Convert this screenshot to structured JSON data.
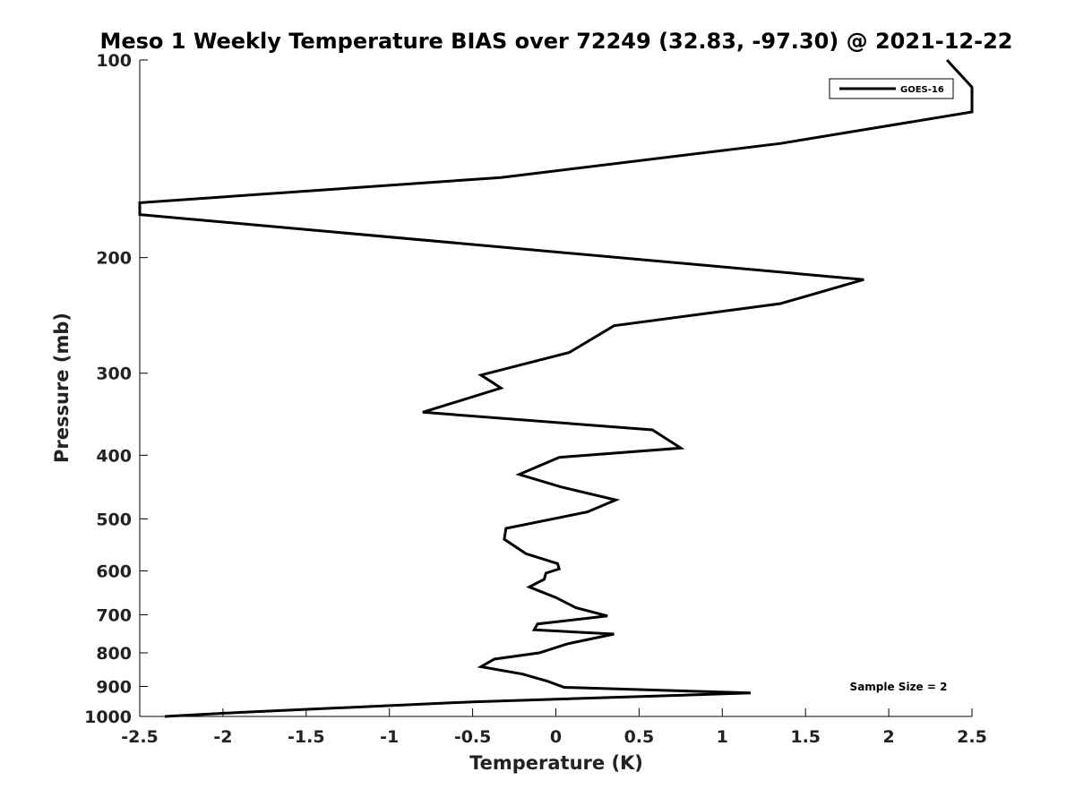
{
  "chart_data": {
    "type": "line",
    "title": "Meso 1 Weekly Temperature BIAS over 72249 (32.83, -97.30) @ 2021-12-22",
    "xlabel": "Temperature (K)",
    "ylabel": "Pressure (mb)",
    "xlim": [
      -2.5,
      2.5
    ],
    "ylim": [
      100,
      1000
    ],
    "y_scale": "log",
    "y_reversed": true,
    "x_ticks": [
      -2.5,
      -2,
      -1.5,
      -1,
      -0.5,
      0,
      0.5,
      1,
      1.5,
      2,
      2.5
    ],
    "x_tick_labels": [
      "-2.5",
      "-2",
      "-1.5",
      "-1",
      "-0.5",
      "0",
      "0.5",
      "1",
      "1.5",
      "2",
      "2.5"
    ],
    "y_ticks": [
      100,
      200,
      300,
      400,
      500,
      600,
      700,
      800,
      900,
      1000
    ],
    "y_tick_labels": [
      "100",
      "200",
      "300",
      "400",
      "500",
      "600",
      "700",
      "800",
      "900",
      "1000"
    ],
    "grid": false,
    "legend_position": "top-right",
    "annotation": "Sample Size = 2",
    "series": [
      {
        "name": "GOES-16",
        "color": "#000000",
        "x": [
          2.35,
          2.5,
          2.5,
          1.35,
          -0.33,
          -2.5,
          -2.5,
          1.85,
          1.35,
          0.35,
          0.08,
          -0.45,
          -0.33,
          -0.8,
          0.58,
          0.75,
          0.02,
          -0.22,
          0.03,
          0.36,
          0.19,
          -0.3,
          -0.31,
          -0.18,
          0.01,
          0.02,
          -0.06,
          -0.07,
          -0.16,
          0.0,
          0.12,
          0.31,
          -0.11,
          -0.13,
          0.35,
          0.07,
          -0.1,
          -0.37,
          -0.45,
          -0.2,
          -0.05,
          0.05,
          1.17,
          -0.5,
          -1.9,
          -2.35
        ],
        "y": [
          100,
          110,
          120,
          134,
          151,
          165,
          172,
          216,
          235,
          254,
          279,
          302,
          316,
          344,
          366,
          390,
          403,
          428,
          447,
          468,
          488,
          517,
          537,
          565,
          585,
          596,
          605,
          618,
          635,
          659,
          683,
          703,
          723,
          738,
          749,
          775,
          800,
          818,
          840,
          862,
          884,
          903,
          921,
          950,
          986,
          1000
        ]
      }
    ]
  }
}
